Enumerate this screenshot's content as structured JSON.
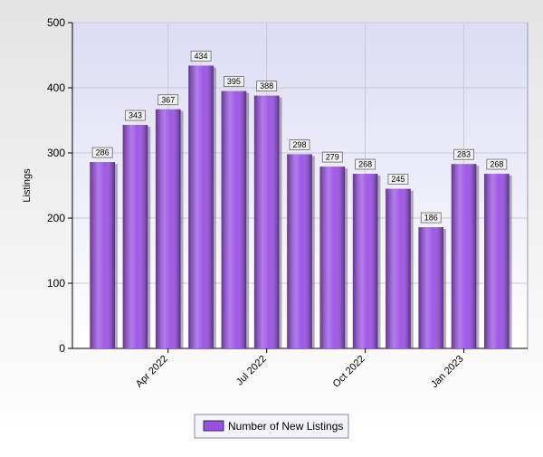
{
  "chart_data": {
    "type": "bar",
    "y_label": "Listings",
    "categories": [
      null,
      null,
      "Apr 2022",
      null,
      null,
      "Jul 2022",
      null,
      null,
      "Oct 2022",
      null,
      null,
      "Jan 2023",
      null
    ],
    "series": [
      {
        "name": "Number of New Listings",
        "color": "#9a4fe6",
        "values": [
          286,
          343,
          367,
          434,
          395,
          388,
          298,
          279,
          268,
          245,
          186,
          283,
          268
        ]
      }
    ],
    "ylim": [
      0,
      500
    ],
    "yticks": [
      0,
      100,
      200,
      300,
      400,
      500
    ],
    "grid": true,
    "legend": "bottom"
  }
}
